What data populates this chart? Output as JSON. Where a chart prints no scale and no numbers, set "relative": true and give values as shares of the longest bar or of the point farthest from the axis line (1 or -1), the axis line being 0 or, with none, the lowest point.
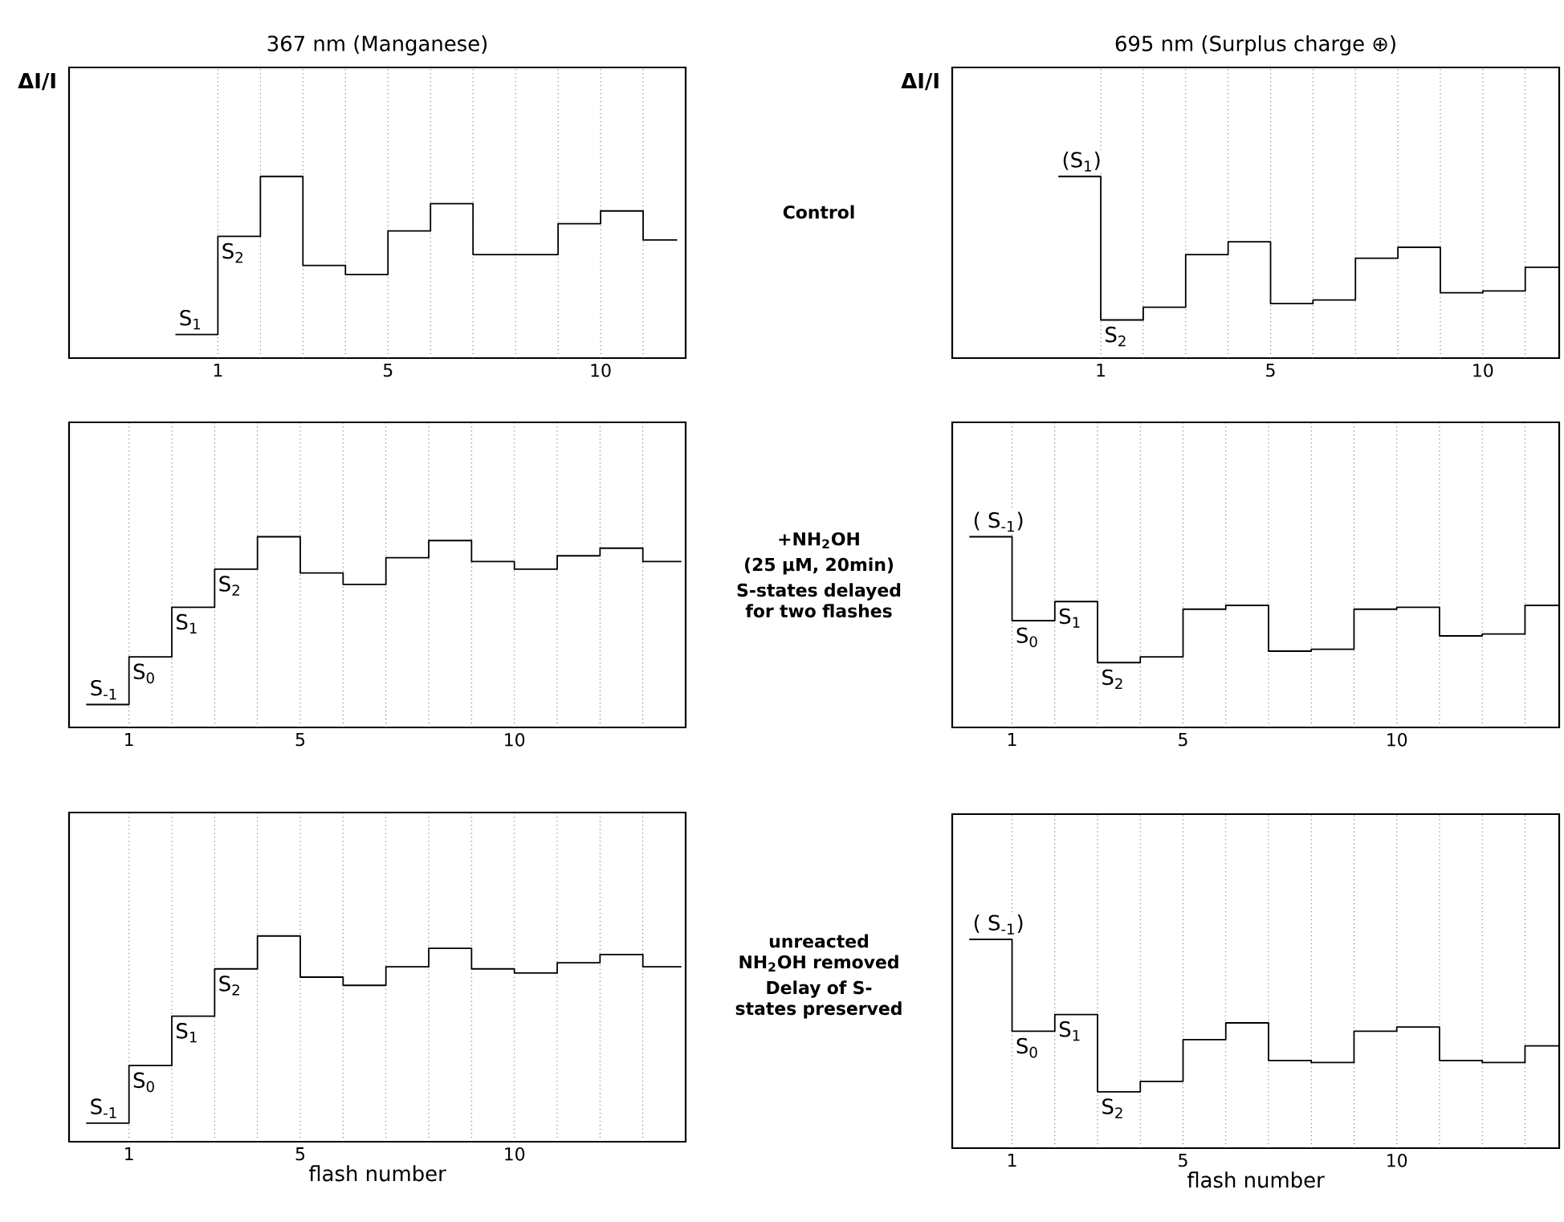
{
  "chart_data": [
    {
      "type": "step",
      "relative": true,
      "title": "367 nm (Manganese)",
      "ylabel": "ΔI/I",
      "x": [
        0,
        1,
        2,
        3,
        4,
        5,
        6,
        7,
        8,
        9,
        10,
        11,
        11.8
      ],
      "xlim": [
        -2.5,
        12
      ],
      "xticks": [
        1,
        5,
        10
      ],
      "series": [
        {
          "color": "#000000",
          "values": [
            0.13,
            0.67,
            1,
            0.51,
            0.46,
            0.7,
            0.85,
            0.57,
            0.57,
            0.74,
            0.81,
            0.65,
            0.65
          ]
        }
      ],
      "ref_lines": [
        {
          "axis": "x",
          "value": 1,
          "line_style": "dotted"
        },
        {
          "axis": "x",
          "value": 2,
          "line_style": "dotted"
        },
        {
          "axis": "x",
          "value": 3,
          "line_style": "dotted"
        },
        {
          "axis": "x",
          "value": 4,
          "line_style": "dotted"
        },
        {
          "axis": "x",
          "value": 5,
          "line_style": "dotted"
        },
        {
          "axis": "x",
          "value": 6,
          "line_style": "dotted"
        },
        {
          "axis": "x",
          "value": 7,
          "line_style": "dotted"
        },
        {
          "axis": "x",
          "value": 8,
          "line_style": "dotted"
        },
        {
          "axis": "x",
          "value": 9,
          "line_style": "dotted"
        },
        {
          "axis": "x",
          "value": 10,
          "line_style": "dotted"
        },
        {
          "axis": "x",
          "value": 11,
          "line_style": "dotted"
        }
      ],
      "annotations": [
        {
          "text": "S$_{1}$",
          "x": 0,
          "y": 0.13
        },
        {
          "text": "S$_{2}$",
          "x": 1,
          "y": 0.67
        },
        "Control"
      ]
    },
    {
      "type": "step",
      "relative": true,
      "title": "695 nm (Surplus charge ⊕)",
      "ylabel": "ΔI/I",
      "x": [
        0,
        1,
        2,
        3,
        4,
        5,
        6,
        7,
        8,
        9,
        10,
        11,
        11.8
      ],
      "xlim": [
        -2.5,
        11.8
      ],
      "xticks": [
        1,
        5,
        10
      ],
      "series": [
        {
          "color": "#000000",
          "values": [
            1,
            0.21,
            0.28,
            0.57,
            0.64,
            0.3,
            0.32,
            0.55,
            0.61,
            0.36,
            0.37,
            0.5,
            0.5
          ]
        }
      ],
      "ref_lines": [
        {
          "axis": "x",
          "value": 1,
          "line_style": "dotted"
        },
        {
          "axis": "x",
          "value": 2,
          "line_style": "dotted"
        },
        {
          "axis": "x",
          "value": 3,
          "line_style": "dotted"
        },
        {
          "axis": "x",
          "value": 4,
          "line_style": "dotted"
        },
        {
          "axis": "x",
          "value": 5,
          "line_style": "dotted"
        },
        {
          "axis": "x",
          "value": 6,
          "line_style": "dotted"
        },
        {
          "axis": "x",
          "value": 7,
          "line_style": "dotted"
        },
        {
          "axis": "x",
          "value": 8,
          "line_style": "dotted"
        },
        {
          "axis": "x",
          "value": 9,
          "line_style": "dotted"
        },
        {
          "axis": "x",
          "value": 10,
          "line_style": "dotted"
        },
        {
          "axis": "x",
          "value": 11,
          "line_style": "dotted"
        }
      ],
      "annotations": [
        {
          "text": "(S$_{1}$)",
          "x": 0,
          "y": 1
        },
        {
          "text": "S$_{2}$",
          "x": 1,
          "y": 0.21
        }
      ]
    },
    {
      "type": "step",
      "relative": true,
      "x": [
        0,
        1,
        2,
        3,
        4,
        5,
        6,
        7,
        8,
        9,
        10,
        11,
        12,
        13,
        13.9
      ],
      "xlim": [
        -0.4,
        14
      ],
      "xticks": [
        1,
        5,
        10
      ],
      "series": [
        {
          "color": "#000000",
          "values": [
            0.12,
            0.37,
            0.63,
            0.83,
            1,
            0.81,
            0.75,
            0.89,
            0.98,
            0.87,
            0.83,
            0.9,
            0.94,
            0.87,
            0.87
          ]
        }
      ],
      "ref_lines": [
        {
          "axis": "x",
          "value": 1,
          "line_style": "dotted"
        },
        {
          "axis": "x",
          "value": 2,
          "line_style": "dotted"
        },
        {
          "axis": "x",
          "value": 3,
          "line_style": "dotted"
        },
        {
          "axis": "x",
          "value": 4,
          "line_style": "dotted"
        },
        {
          "axis": "x",
          "value": 5,
          "line_style": "dotted"
        },
        {
          "axis": "x",
          "value": 6,
          "line_style": "dotted"
        },
        {
          "axis": "x",
          "value": 7,
          "line_style": "dotted"
        },
        {
          "axis": "x",
          "value": 8,
          "line_style": "dotted"
        },
        {
          "axis": "x",
          "value": 9,
          "line_style": "dotted"
        },
        {
          "axis": "x",
          "value": 10,
          "line_style": "dotted"
        },
        {
          "axis": "x",
          "value": 11,
          "line_style": "dotted"
        },
        {
          "axis": "x",
          "value": 12,
          "line_style": "dotted"
        },
        {
          "axis": "x",
          "value": 13,
          "line_style": "dotted"
        }
      ],
      "annotations": [
        {
          "text": "S$_{-1}$",
          "x": 0,
          "y": 0.12
        },
        {
          "text": "S$_{0}$",
          "x": 1,
          "y": 0.37
        },
        {
          "text": "S$_{1}$",
          "x": 2,
          "y": 0.63
        },
        {
          "text": "S$_{2}$",
          "x": 3,
          "y": 0.83
        },
        "+NH$_{2}$OH",
        "(25 µM, 20min)",
        "S-states delayed for two flashes"
      ]
    },
    {
      "type": "step",
      "relative": true,
      "x": [
        0,
        1,
        2,
        3,
        4,
        5,
        6,
        7,
        8,
        9,
        10,
        11,
        12,
        13,
        13.8
      ],
      "xlim": [
        -0.4,
        13.8
      ],
      "xticks": [
        1,
        5,
        10
      ],
      "series": [
        {
          "color": "#000000",
          "values": [
            1,
            0.56,
            0.66,
            0.34,
            0.37,
            0.62,
            0.64,
            0.4,
            0.41,
            0.62,
            0.63,
            0.48,
            0.49,
            0.64,
            0.64
          ]
        }
      ],
      "ref_lines": [
        {
          "axis": "x",
          "value": 1,
          "line_style": "dotted"
        },
        {
          "axis": "x",
          "value": 2,
          "line_style": "dotted"
        },
        {
          "axis": "x",
          "value": 3,
          "line_style": "dotted"
        },
        {
          "axis": "x",
          "value": 4,
          "line_style": "dotted"
        },
        {
          "axis": "x",
          "value": 5,
          "line_style": "dotted"
        },
        {
          "axis": "x",
          "value": 6,
          "line_style": "dotted"
        },
        {
          "axis": "x",
          "value": 7,
          "line_style": "dotted"
        },
        {
          "axis": "x",
          "value": 8,
          "line_style": "dotted"
        },
        {
          "axis": "x",
          "value": 9,
          "line_style": "dotted"
        },
        {
          "axis": "x",
          "value": 10,
          "line_style": "dotted"
        },
        {
          "axis": "x",
          "value": 11,
          "line_style": "dotted"
        },
        {
          "axis": "x",
          "value": 12,
          "line_style": "dotted"
        },
        {
          "axis": "x",
          "value": 13,
          "line_style": "dotted"
        }
      ],
      "annotations": [
        {
          "text": "( S$_{-1}$)",
          "x": 0,
          "y": 1
        },
        {
          "text": "S$_{0}$",
          "x": 1,
          "y": 0.56
        },
        {
          "text": "S$_{1}$",
          "x": 2,
          "y": 0.66
        },
        {
          "text": "S$_{2}$",
          "x": 3,
          "y": 0.34
        }
      ]
    },
    {
      "type": "step",
      "relative": true,
      "xlabel": "flash number",
      "x": [
        0,
        1,
        2,
        3,
        4,
        5,
        6,
        7,
        8,
        9,
        10,
        11,
        12,
        13,
        13.9
      ],
      "xlim": [
        -0.4,
        14
      ],
      "xticks": [
        1,
        5,
        10
      ],
      "series": [
        {
          "color": "#000000",
          "values": [
            0.09,
            0.37,
            0.61,
            0.84,
            1,
            0.8,
            0.76,
            0.85,
            0.94,
            0.84,
            0.82,
            0.87,
            0.91,
            0.85,
            0.85
          ]
        }
      ],
      "ref_lines": [
        {
          "axis": "x",
          "value": 1,
          "line_style": "dotted"
        },
        {
          "axis": "x",
          "value": 2,
          "line_style": "dotted"
        },
        {
          "axis": "x",
          "value": 3,
          "line_style": "dotted"
        },
        {
          "axis": "x",
          "value": 4,
          "line_style": "dotted"
        },
        {
          "axis": "x",
          "value": 5,
          "line_style": "dotted"
        },
        {
          "axis": "x",
          "value": 6,
          "line_style": "dotted"
        },
        {
          "axis": "x",
          "value": 7,
          "line_style": "dotted"
        },
        {
          "axis": "x",
          "value": 8,
          "line_style": "dotted"
        },
        {
          "axis": "x",
          "value": 9,
          "line_style": "dotted"
        },
        {
          "axis": "x",
          "value": 10,
          "line_style": "dotted"
        },
        {
          "axis": "x",
          "value": 11,
          "line_style": "dotted"
        },
        {
          "axis": "x",
          "value": 12,
          "line_style": "dotted"
        },
        {
          "axis": "x",
          "value": 13,
          "line_style": "dotted"
        }
      ],
      "annotations": [
        {
          "text": "S$_{-1}$",
          "x": 0,
          "y": 0.09
        },
        {
          "text": "S$_{0}$",
          "x": 1,
          "y": 0.37
        },
        {
          "text": "S$_{1}$",
          "x": 2,
          "y": 0.61
        },
        {
          "text": "S$_{2}$",
          "x": 3,
          "y": 0.84
        },
        "unreacted NH$_{2}$OH removed",
        "Delay of S-states preserved"
      ]
    },
    {
      "type": "step",
      "relative": true,
      "xlabel": "flash number",
      "x": [
        0,
        1,
        2,
        3,
        4,
        5,
        6,
        7,
        8,
        9,
        10,
        11,
        12,
        13,
        13.8
      ],
      "xlim": [
        -0.4,
        13.8
      ],
      "xticks": [
        1,
        5,
        10
      ],
      "series": [
        {
          "color": "#000000",
          "values": [
            1,
            0.56,
            0.64,
            0.27,
            0.32,
            0.52,
            0.6,
            0.42,
            0.41,
            0.56,
            0.58,
            0.42,
            0.41,
            0.49,
            0.49
          ]
        }
      ],
      "ref_lines": [
        {
          "axis": "x",
          "value": 1,
          "line_style": "dotted"
        },
        {
          "axis": "x",
          "value": 2,
          "line_style": "dotted"
        },
        {
          "axis": "x",
          "value": 3,
          "line_style": "dotted"
        },
        {
          "axis": "x",
          "value": 4,
          "line_style": "dotted"
        },
        {
          "axis": "x",
          "value": 5,
          "line_style": "dotted"
        },
        {
          "axis": "x",
          "value": 6,
          "line_style": "dotted"
        },
        {
          "axis": "x",
          "value": 7,
          "line_style": "dotted"
        },
        {
          "axis": "x",
          "value": 8,
          "line_style": "dotted"
        },
        {
          "axis": "x",
          "value": 9,
          "line_style": "dotted"
        },
        {
          "axis": "x",
          "value": 10,
          "line_style": "dotted"
        },
        {
          "axis": "x",
          "value": 11,
          "line_style": "dotted"
        },
        {
          "axis": "x",
          "value": 12,
          "line_style": "dotted"
        },
        {
          "axis": "x",
          "value": 13,
          "line_style": "dotted"
        }
      ],
      "annotations": [
        {
          "text": "( S$_{-1}$)",
          "x": 0,
          "y": 1
        },
        {
          "text": "S$_{0}$",
          "x": 1,
          "y": 0.56
        },
        {
          "text": "S$_{1}$",
          "x": 2,
          "y": 0.64
        },
        {
          "text": "S$_{2}$",
          "x": 3,
          "y": 0.27
        }
      ]
    }
  ]
}
